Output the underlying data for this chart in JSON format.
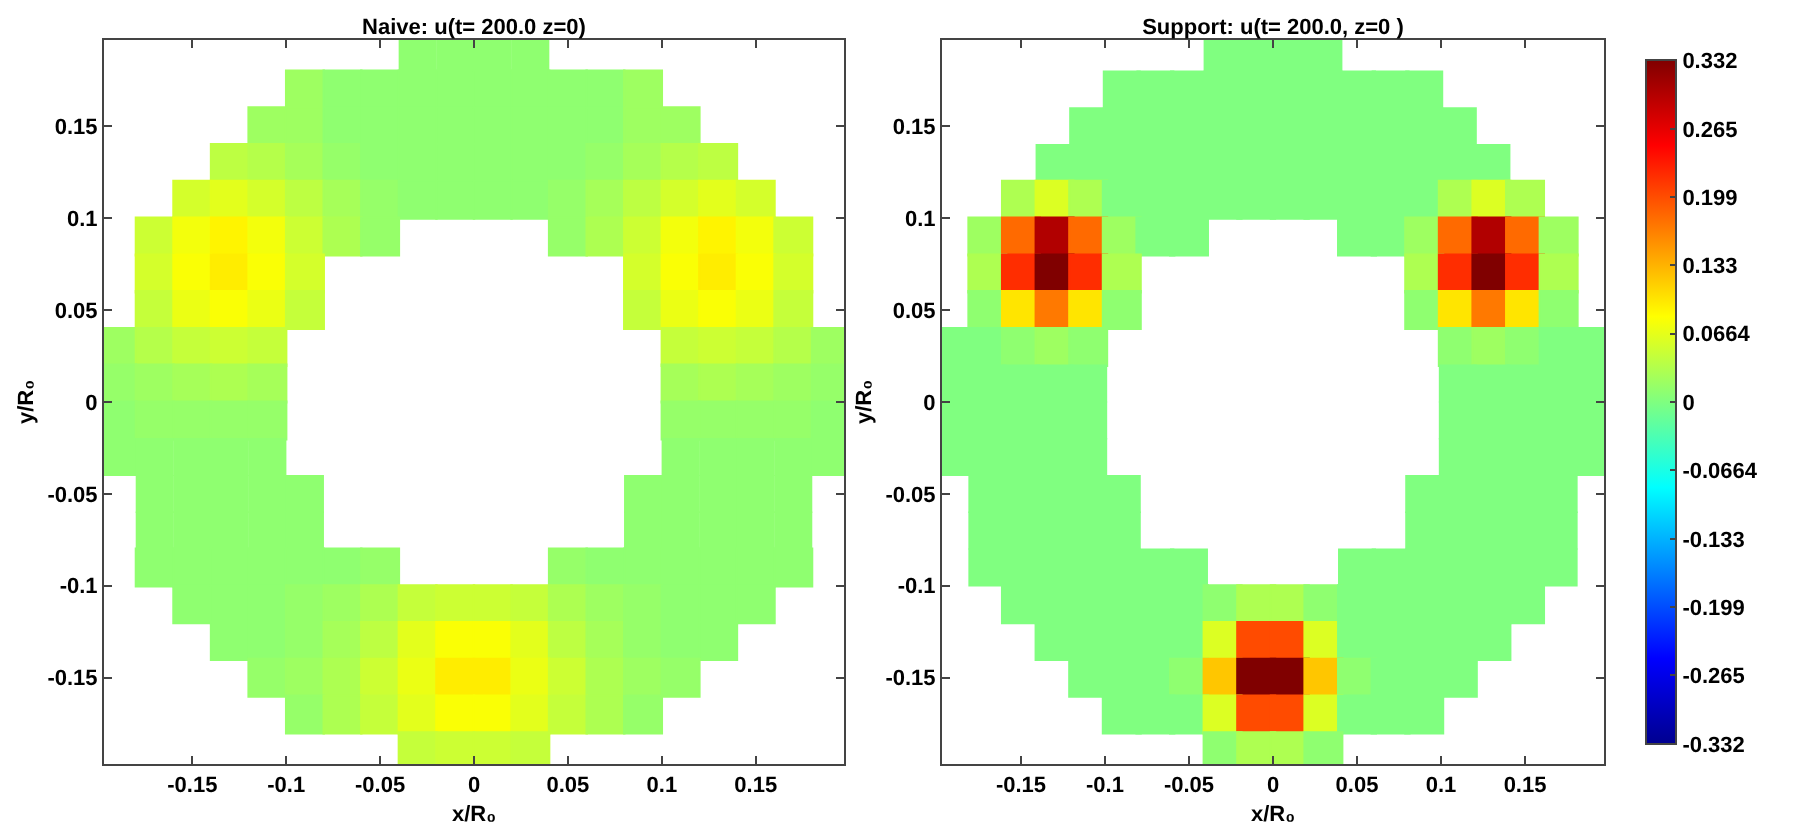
{
  "chart_data": [
    {
      "type": "scatter",
      "title": "Naive: u(t= 200.0 z=0)",
      "xlabel": "x/R₀",
      "ylabel": "y/R₀",
      "marker": "square",
      "xlim": [
        -0.197,
        0.197
      ],
      "ylim": [
        -0.197,
        0.197
      ],
      "xticks": [
        -0.15,
        -0.1,
        -0.05,
        0,
        0.05,
        0.1,
        0.15
      ],
      "yticks": [
        -0.15,
        -0.1,
        -0.05,
        0,
        0.05,
        0.1,
        0.15
      ],
      "grid": false,
      "series": [
        {
          "x": [
            -0.03,
            -0.01,
            0.01,
            0.03
          ],
          "values": [
            0.19,
            0.19,
            0.19,
            0.19
          ],
          "color": "#8fff70"
        },
        {
          "x": [
            -0.09,
            -0.07,
            -0.05,
            -0.03,
            -0.01,
            0.01,
            0.03,
            0.05,
            0.07,
            0.09
          ],
          "values": [
            0.17,
            0.17,
            0.17,
            0.17,
            0.17,
            0.17,
            0.17,
            0.17,
            0.17,
            0.17
          ],
          "colors": [
            "#9eff61",
            "#8fff70",
            "#8fff70",
            "#8fff70",
            "#8fff70",
            "#8fff70",
            "#8fff70",
            "#8fff70",
            "#8fff70",
            "#9eff61"
          ]
        },
        {
          "x": [
            -0.11,
            -0.09,
            -0.07,
            -0.05,
            -0.03,
            -0.01,
            0.01,
            0.03,
            0.05,
            0.07,
            0.09,
            0.11
          ],
          "values": [
            0.15,
            0.15,
            0.15,
            0.15,
            0.15,
            0.15,
            0.15,
            0.15,
            0.15,
            0.15,
            0.15,
            0.15
          ],
          "colors": [
            "#9eff61",
            "#9eff61",
            "#8fff70",
            "#8fff70",
            "#8fff70",
            "#8fff70",
            "#8fff70",
            "#8fff70",
            "#8fff70",
            "#8fff70",
            "#9eff61",
            "#9eff61"
          ]
        },
        {
          "x": [
            -0.13,
            -0.11,
            -0.09,
            -0.07,
            -0.05,
            -0.03,
            -0.01,
            0.01,
            0.03,
            0.05,
            0.07,
            0.09,
            0.11,
            0.13
          ],
          "values": [
            0.13,
            0.13,
            0.13,
            0.13,
            0.13,
            0.13,
            0.13,
            0.13,
            0.13,
            0.13,
            0.13,
            0.13,
            0.13,
            0.13
          ],
          "colors": [
            "#bdff42",
            "#b5ff4a",
            "#a6ff59",
            "#96ff69",
            "#8fff70",
            "#8fff70",
            "#8fff70",
            "#8fff70",
            "#8fff70",
            "#8fff70",
            "#96ff69",
            "#a6ff59",
            "#b5ff4a",
            "#bdff42"
          ]
        },
        {
          "x": [
            -0.15,
            -0.13,
            -0.11,
            -0.09,
            -0.07,
            -0.05,
            -0.03,
            -0.01,
            0.01,
            0.03,
            0.05,
            0.07,
            0.09,
            0.11,
            0.13,
            0.15
          ],
          "values": [
            0.11,
            0.11,
            0.11,
            0.11,
            0.11,
            0.11,
            0.11,
            0.11,
            0.11,
            0.11,
            0.11,
            0.11,
            0.11,
            0.11,
            0.11,
            0.11
          ],
          "colors": [
            "#d4ff2b",
            "#e3ff1c",
            "#d4ff2b",
            "#bdff42",
            "#a6ff59",
            "#96ff69",
            "#8fff70",
            "#8fff70",
            "#8fff70",
            "#8fff70",
            "#96ff69",
            "#a6ff59",
            "#bdff42",
            "#d4ff2b",
            "#e3ff1c",
            "#d4ff2b"
          ]
        },
        {
          "x": [
            -0.17,
            -0.15,
            -0.13,
            -0.11,
            -0.09,
            -0.07,
            -0.05,
            0.05,
            0.07,
            0.09,
            0.11,
            0.13,
            0.15,
            0.17
          ],
          "values": [
            0.09,
            0.09,
            0.09,
            0.09,
            0.09,
            0.09,
            0.09,
            0.09,
            0.09,
            0.09,
            0.09,
            0.09,
            0.09,
            0.09
          ],
          "colors": [
            "#ccff33",
            "#f3ff0c",
            "#fff400",
            "#f3ff0c",
            "#ccff33",
            "#adff51",
            "#96ff69",
            "#96ff69",
            "#adff51",
            "#ccff33",
            "#f3ff0c",
            "#fff400",
            "#f3ff0c",
            "#ccff33"
          ]
        },
        {
          "x": [
            -0.17,
            -0.15,
            -0.13,
            -0.11,
            -0.09,
            0.09,
            0.11,
            0.13,
            0.15,
            0.17
          ],
          "values": [
            0.07,
            0.07,
            0.07,
            0.07,
            0.07,
            0.07,
            0.07,
            0.07,
            0.07,
            0.07
          ],
          "colors": [
            "#d4ff2b",
            "#faff05",
            "#ffed00",
            "#faff05",
            "#d4ff2b",
            "#d4ff2b",
            "#faff05",
            "#ffed00",
            "#faff05",
            "#d4ff2b"
          ]
        },
        {
          "x": [
            -0.17,
            -0.15,
            -0.13,
            -0.11,
            -0.09,
            0.09,
            0.11,
            0.13,
            0.15,
            0.17
          ],
          "values": [
            0.05,
            0.05,
            0.05,
            0.05,
            0.05,
            0.05,
            0.05,
            0.05,
            0.05,
            0.05
          ],
          "colors": [
            "#c5ff3a",
            "#ebff14",
            "#faff05",
            "#ebff14",
            "#c5ff3a",
            "#c5ff3a",
            "#ebff14",
            "#faff05",
            "#ebff14",
            "#c5ff3a"
          ]
        },
        {
          "x": [
            -0.19,
            -0.17,
            -0.15,
            -0.13,
            -0.11,
            0.11,
            0.13,
            0.15,
            0.17,
            0.19
          ],
          "values": [
            0.03,
            0.03,
            0.03,
            0.03,
            0.03,
            0.03,
            0.03,
            0.03,
            0.03,
            0.03
          ],
          "colors": [
            "#9eff61",
            "#b5ff4a",
            "#c5ff3a",
            "#ccff33",
            "#c5ff3a",
            "#c5ff3a",
            "#ccff33",
            "#c5ff3a",
            "#b5ff4a",
            "#9eff61"
          ]
        },
        {
          "x": [
            -0.19,
            -0.17,
            -0.15,
            -0.13,
            -0.11,
            0.11,
            0.13,
            0.15,
            0.17,
            0.19
          ],
          "values": [
            0.01,
            0.01,
            0.01,
            0.01,
            0.01,
            0.01,
            0.01,
            0.01,
            0.01,
            0.01
          ],
          "colors": [
            "#96ff69",
            "#9eff61",
            "#a6ff59",
            "#adff51",
            "#a6ff59",
            "#a6ff59",
            "#adff51",
            "#a6ff59",
            "#9eff61",
            "#96ff69"
          ]
        },
        {
          "x": [
            -0.19,
            -0.17,
            -0.15,
            -0.13,
            -0.11,
            0.11,
            0.13,
            0.15,
            0.17,
            0.19
          ],
          "values": [
            -0.01,
            -0.01,
            -0.01,
            -0.01,
            -0.01,
            -0.01,
            -0.01,
            -0.01,
            -0.01,
            -0.01
          ],
          "colors": [
            "#8fff70",
            "#96ff69",
            "#96ff69",
            "#96ff69",
            "#96ff69",
            "#96ff69",
            "#96ff69",
            "#96ff69",
            "#96ff69",
            "#8fff70"
          ]
        },
        {
          "x": [
            -0.19,
            -0.17,
            -0.15,
            -0.13,
            -0.11,
            0.11,
            0.13,
            0.15,
            0.17,
            0.19
          ],
          "values": [
            -0.03,
            -0.03,
            -0.03,
            -0.03,
            -0.03,
            -0.03,
            -0.03,
            -0.03,
            -0.03,
            -0.03
          ],
          "color": "#8fff70"
        },
        {
          "x": [
            -0.17,
            -0.15,
            -0.13,
            -0.11,
            -0.09,
            0.09,
            0.11,
            0.13,
            0.15,
            0.17
          ],
          "values": [
            -0.05,
            -0.05,
            -0.05,
            -0.05,
            -0.05,
            -0.05,
            -0.05,
            -0.05,
            -0.05,
            -0.05
          ],
          "color": "#8fff70"
        },
        {
          "x": [
            -0.17,
            -0.15,
            -0.13,
            -0.11,
            -0.09,
            0.09,
            0.11,
            0.13,
            0.15,
            0.17
          ],
          "values": [
            -0.07,
            -0.07,
            -0.07,
            -0.07,
            -0.07,
            -0.07,
            -0.07,
            -0.07,
            -0.07,
            -0.07
          ],
          "color": "#8fff70"
        },
        {
          "x": [
            -0.17,
            -0.15,
            -0.13,
            -0.11,
            -0.09,
            -0.07,
            -0.05,
            0.05,
            0.07,
            0.09,
            0.11,
            0.13,
            0.15,
            0.17
          ],
          "values": [
            -0.09,
            -0.09,
            -0.09,
            -0.09,
            -0.09,
            -0.09,
            -0.09,
            -0.09,
            -0.09,
            -0.09,
            -0.09,
            -0.09,
            -0.09,
            -0.09
          ],
          "colors": [
            "#8fff70",
            "#8fff70",
            "#8fff70",
            "#8fff70",
            "#8fff70",
            "#8fff70",
            "#96ff69",
            "#96ff69",
            "#8fff70",
            "#8fff70",
            "#8fff70",
            "#8fff70",
            "#8fff70",
            "#8fff70"
          ]
        },
        {
          "x": [
            -0.15,
            -0.13,
            -0.11,
            -0.09,
            -0.07,
            -0.05,
            -0.03,
            -0.01,
            0.01,
            0.03,
            0.05,
            0.07,
            0.09,
            0.11,
            0.13,
            0.15
          ],
          "values": [
            -0.11,
            -0.11,
            -0.11,
            -0.11,
            -0.11,
            -0.11,
            -0.11,
            -0.11,
            -0.11,
            -0.11,
            -0.11,
            -0.11,
            -0.11,
            -0.11,
            -0.11,
            -0.11
          ],
          "colors": [
            "#8fff70",
            "#8fff70",
            "#8fff70",
            "#96ff69",
            "#9eff61",
            "#adff51",
            "#c5ff3a",
            "#ccff33",
            "#ccff33",
            "#c5ff3a",
            "#adff51",
            "#9eff61",
            "#96ff69",
            "#8fff70",
            "#8fff70",
            "#8fff70"
          ]
        },
        {
          "x": [
            -0.13,
            -0.11,
            -0.09,
            -0.07,
            -0.05,
            -0.03,
            -0.01,
            0.01,
            0.03,
            0.05,
            0.07,
            0.09,
            0.11,
            0.13
          ],
          "values": [
            -0.13,
            -0.13,
            -0.13,
            -0.13,
            -0.13,
            -0.13,
            -0.13,
            -0.13,
            -0.13,
            -0.13,
            -0.13,
            -0.13,
            -0.13,
            -0.13
          ],
          "colors": [
            "#8fff70",
            "#8fff70",
            "#96ff69",
            "#a6ff59",
            "#bdff42",
            "#e3ff1c",
            "#faff05",
            "#faff05",
            "#e3ff1c",
            "#bdff42",
            "#a6ff59",
            "#96ff69",
            "#8fff70",
            "#8fff70"
          ]
        },
        {
          "x": [
            -0.11,
            -0.09,
            -0.07,
            -0.05,
            -0.03,
            -0.01,
            0.01,
            0.03,
            0.05,
            0.07,
            0.09,
            0.11
          ],
          "values": [
            -0.15,
            -0.15,
            -0.15,
            -0.15,
            -0.15,
            -0.15,
            -0.15,
            -0.15,
            -0.15,
            -0.15,
            -0.15,
            -0.15
          ],
          "colors": [
            "#96ff69",
            "#9eff61",
            "#adff51",
            "#ccff33",
            "#ebff14",
            "#ffed00",
            "#ffed00",
            "#ebff14",
            "#ccff33",
            "#adff51",
            "#9eff61",
            "#96ff69"
          ]
        },
        {
          "x": [
            -0.09,
            -0.07,
            -0.05,
            -0.03,
            -0.01,
            0.01,
            0.03,
            0.05,
            0.07,
            0.09
          ],
          "values": [
            -0.17,
            -0.17,
            -0.17,
            -0.17,
            -0.17,
            -0.17,
            -0.17,
            -0.17,
            -0.17,
            -0.17
          ],
          "colors": [
            "#96ff69",
            "#adff51",
            "#c5ff3a",
            "#e3ff1c",
            "#faff05",
            "#faff05",
            "#e3ff1c",
            "#c5ff3a",
            "#adff51",
            "#96ff69"
          ]
        },
        {
          "x": [
            -0.03,
            -0.01,
            0.01,
            0.03
          ],
          "values": [
            -0.19,
            -0.19,
            -0.19,
            -0.19
          ],
          "colors": [
            "#c5ff3a",
            "#ccff33",
            "#ccff33",
            "#c5ff3a"
          ]
        }
      ]
    },
    {
      "type": "scatter",
      "title": "Support: u(t= 200.0, z=0 )",
      "xlabel": "x/R₀",
      "ylabel": "y/R₀",
      "marker": "square",
      "xlim": [
        -0.197,
        0.197
      ],
      "ylim": [
        -0.197,
        0.197
      ],
      "xticks": [
        -0.15,
        -0.1,
        -0.05,
        0,
        0.05,
        0.1,
        0.15
      ],
      "yticks": [
        -0.15,
        -0.1,
        -0.05,
        0,
        0.05,
        0.1,
        0.15
      ],
      "clim": [
        -0.332,
        0.332
      ],
      "cticks": [
        -0.332,
        -0.265,
        -0.199,
        -0.133,
        -0.0664,
        0,
        0.0664,
        0.133,
        0.199,
        0.265,
        0.332
      ],
      "grid": false,
      "series": [
        {
          "x": [
            -0.03,
            -0.01,
            0.01,
            0.03
          ],
          "values": [
            0.19,
            0.19,
            0.19,
            0.19
          ],
          "cvalues": [
            0,
            0,
            0,
            0
          ]
        },
        {
          "x": [
            -0.09,
            -0.07,
            -0.05,
            -0.03,
            -0.01,
            0.01,
            0.03,
            0.05,
            0.07,
            0.09
          ],
          "values": [
            0.17,
            0.17,
            0.17,
            0.17,
            0.17,
            0.17,
            0.17,
            0.17,
            0.17,
            0.17
          ],
          "cvalues": [
            0,
            0,
            0,
            0,
            0,
            0,
            0,
            0,
            0,
            0
          ]
        },
        {
          "x": [
            -0.11,
            -0.09,
            -0.07,
            -0.05,
            -0.03,
            -0.01,
            0.01,
            0.03,
            0.05,
            0.07,
            0.09,
            0.11
          ],
          "values": [
            0.15,
            0.15,
            0.15,
            0.15,
            0.15,
            0.15,
            0.15,
            0.15,
            0.15,
            0.15,
            0.15,
            0.15
          ],
          "cvalues": [
            0,
            0,
            0,
            0,
            0,
            0,
            0,
            0,
            0,
            0,
            0,
            0
          ]
        },
        {
          "x": [
            -0.13,
            -0.11,
            -0.09,
            -0.07,
            -0.05,
            -0.03,
            -0.01,
            0.01,
            0.03,
            0.05,
            0.07,
            0.09,
            0.11,
            0.13
          ],
          "values": [
            0.13,
            0.13,
            0.13,
            0.13,
            0.13,
            0.13,
            0.13,
            0.13,
            0.13,
            0.13,
            0.13,
            0.13,
            0.13,
            0.13
          ],
          "cvalues": [
            0,
            0,
            0,
            0,
            0,
            0,
            0,
            0,
            0,
            0,
            0,
            0,
            0,
            0
          ]
        },
        {
          "x": [
            -0.15,
            -0.13,
            -0.11,
            -0.09,
            -0.07,
            -0.05,
            -0.03,
            -0.01,
            0.01,
            0.03,
            0.05,
            0.07,
            0.09,
            0.11,
            0.13,
            0.15
          ],
          "values": [
            0.11,
            0.11,
            0.11,
            0.11,
            0.11,
            0.11,
            0.11,
            0.11,
            0.11,
            0.11,
            0.11,
            0.11,
            0.11,
            0.11,
            0.11,
            0.11
          ],
          "cvalues": [
            0.03,
            0.06,
            0.03,
            0,
            0,
            0,
            0,
            0,
            0,
            0,
            0,
            0,
            0,
            0.03,
            0.06,
            0.03
          ],
          "colors": [
            "#adff51",
            "#dcff23",
            "#adff51",
            "#80ff80",
            "#80ff80",
            "#80ff80",
            "#80ff80",
            "#80ff80",
            "#80ff80",
            "#80ff80",
            "#80ff80",
            "#80ff80",
            "#80ff80",
            "#adff51",
            "#dcff23",
            "#adff51"
          ]
        },
        {
          "x": [
            -0.17,
            -0.15,
            -0.13,
            -0.11,
            -0.09,
            -0.07,
            -0.05,
            0.05,
            0.07,
            0.09,
            0.11,
            0.13,
            0.15,
            0.17
          ],
          "values": [
            0.09,
            0.09,
            0.09,
            0.09,
            0.09,
            0.09,
            0.09,
            0.09,
            0.09,
            0.09,
            0.09,
            0.09,
            0.09,
            0.09
          ],
          "cvalues": [
            0.02,
            0.18,
            0.3,
            0.18,
            0.02,
            0,
            0,
            0,
            0,
            0.02,
            0.18,
            0.3,
            0.18,
            0.02
          ],
          "colors": [
            "#9eff61",
            "#ff6a00",
            "#b10000",
            "#ff6a00",
            "#9eff61",
            "#80ff80",
            "#80ff80",
            "#80ff80",
            "#80ff80",
            "#9eff61",
            "#ff6a00",
            "#b10000",
            "#ff6a00",
            "#9eff61"
          ]
        },
        {
          "x": [
            -0.17,
            -0.15,
            -0.13,
            -0.11,
            -0.09,
            0.09,
            0.11,
            0.13,
            0.15,
            0.17
          ],
          "values": [
            0.07,
            0.07,
            0.07,
            0.07,
            0.07,
            0.07,
            0.07,
            0.07,
            0.07,
            0.07
          ],
          "cvalues": [
            0.03,
            0.22,
            0.332,
            0.22,
            0.03,
            0.03,
            0.22,
            0.332,
            0.22,
            0.03
          ],
          "colors": [
            "#adff51",
            "#ff2d00",
            "#800000",
            "#ff2d00",
            "#adff51",
            "#adff51",
            "#ff2d00",
            "#800000",
            "#ff2d00",
            "#adff51"
          ]
        },
        {
          "x": [
            -0.17,
            -0.15,
            -0.13,
            -0.11,
            -0.09,
            0.09,
            0.11,
            0.13,
            0.15,
            0.17
          ],
          "values": [
            0.05,
            0.05,
            0.05,
            0.05,
            0.05,
            0.05,
            0.05,
            0.05,
            0.05,
            0.05
          ],
          "cvalues": [
            0.01,
            0.1,
            0.17,
            0.1,
            0.01,
            0.01,
            0.1,
            0.17,
            0.1,
            0.01
          ],
          "colors": [
            "#8fff70",
            "#ffe500",
            "#ff7900",
            "#ffe500",
            "#8fff70",
            "#8fff70",
            "#ffe500",
            "#ff7900",
            "#ffe500",
            "#8fff70"
          ]
        },
        {
          "x": [
            -0.19,
            -0.17,
            -0.15,
            -0.13,
            -0.11,
            0.11,
            0.13,
            0.15,
            0.17,
            0.19
          ],
          "values": [
            0.03,
            0.03,
            0.03,
            0.03,
            0.03,
            0.03,
            0.03,
            0.03,
            0.03,
            0.03
          ],
          "cvalues": [
            0,
            0,
            0.01,
            0.02,
            0.01,
            0.01,
            0.02,
            0.01,
            0,
            0
          ],
          "colors": [
            "#80ff80",
            "#80ff80",
            "#8fff70",
            "#9eff61",
            "#8fff70",
            "#8fff70",
            "#9eff61",
            "#8fff70",
            "#80ff80",
            "#80ff80"
          ]
        },
        {
          "x": [
            -0.19,
            -0.17,
            -0.15,
            -0.13,
            -0.11,
            0.11,
            0.13,
            0.15,
            0.17,
            0.19
          ],
          "values": [
            0.01,
            0.01,
            0.01,
            0.01,
            0.01,
            0.01,
            0.01,
            0.01,
            0.01,
            0.01
          ],
          "cvalues": [
            0,
            0,
            0,
            0,
            0,
            0,
            0,
            0,
            0,
            0
          ]
        },
        {
          "x": [
            -0.19,
            -0.17,
            -0.15,
            -0.13,
            -0.11,
            0.11,
            0.13,
            0.15,
            0.17,
            0.19
          ],
          "values": [
            -0.01,
            -0.01,
            -0.01,
            -0.01,
            -0.01,
            -0.01,
            -0.01,
            -0.01,
            -0.01,
            -0.01
          ],
          "cvalues": [
            0,
            0,
            0,
            0,
            0,
            0,
            0,
            0,
            0,
            0
          ]
        },
        {
          "x": [
            -0.19,
            -0.17,
            -0.15,
            -0.13,
            -0.11,
            0.11,
            0.13,
            0.15,
            0.17,
            0.19
          ],
          "values": [
            -0.03,
            -0.03,
            -0.03,
            -0.03,
            -0.03,
            -0.03,
            -0.03,
            -0.03,
            -0.03,
            -0.03
          ],
          "cvalues": [
            0,
            0,
            0,
            0,
            0,
            0,
            0,
            0,
            0,
            0
          ]
        },
        {
          "x": [
            -0.17,
            -0.15,
            -0.13,
            -0.11,
            -0.09,
            0.09,
            0.11,
            0.13,
            0.15,
            0.17
          ],
          "values": [
            -0.05,
            -0.05,
            -0.05,
            -0.05,
            -0.05,
            -0.05,
            -0.05,
            -0.05,
            -0.05,
            -0.05
          ],
          "cvalues": [
            0,
            0,
            0,
            0,
            0,
            0,
            0,
            0,
            0,
            0
          ]
        },
        {
          "x": [
            -0.17,
            -0.15,
            -0.13,
            -0.11,
            -0.09,
            0.09,
            0.11,
            0.13,
            0.15,
            0.17
          ],
          "values": [
            -0.07,
            -0.07,
            -0.07,
            -0.07,
            -0.07,
            -0.07,
            -0.07,
            -0.07,
            -0.07,
            -0.07
          ],
          "cvalues": [
            0,
            0,
            0,
            0,
            0,
            0,
            0,
            0,
            0,
            0
          ]
        },
        {
          "x": [
            -0.17,
            -0.15,
            -0.13,
            -0.11,
            -0.09,
            -0.07,
            -0.05,
            0.05,
            0.07,
            0.09,
            0.11,
            0.13,
            0.15,
            0.17
          ],
          "values": [
            -0.09,
            -0.09,
            -0.09,
            -0.09,
            -0.09,
            -0.09,
            -0.09,
            -0.09,
            -0.09,
            -0.09,
            -0.09,
            -0.09,
            -0.09,
            -0.09
          ],
          "cvalues": [
            0,
            0,
            0,
            0,
            0,
            0,
            0,
            0,
            0,
            0,
            0,
            0,
            0,
            0
          ]
        },
        {
          "x": [
            -0.15,
            -0.13,
            -0.11,
            -0.09,
            -0.07,
            -0.05,
            -0.03,
            -0.01,
            0.01,
            0.03,
            0.05,
            0.07,
            0.09,
            0.11,
            0.13,
            0.15
          ],
          "values": [
            -0.11,
            -0.11,
            -0.11,
            -0.11,
            -0.11,
            -0.11,
            -0.11,
            -0.11,
            -0.11,
            -0.11,
            -0.11,
            -0.11,
            -0.11,
            -0.11,
            -0.11,
            -0.11
          ],
          "cvalues": [
            0,
            0,
            0,
            0,
            0,
            0,
            0.01,
            0.03,
            0.03,
            0.01,
            0,
            0,
            0,
            0,
            0,
            0
          ],
          "colors": [
            "#80ff80",
            "#80ff80",
            "#80ff80",
            "#80ff80",
            "#80ff80",
            "#80ff80",
            "#8fff70",
            "#adff51",
            "#adff51",
            "#8fff70",
            "#80ff80",
            "#80ff80",
            "#80ff80",
            "#80ff80",
            "#80ff80",
            "#80ff80"
          ]
        },
        {
          "x": [
            -0.13,
            -0.11,
            -0.09,
            -0.07,
            -0.05,
            -0.03,
            -0.01,
            0.01,
            0.03,
            0.05,
            0.07,
            0.09,
            0.11,
            0.13
          ],
          "values": [
            -0.13,
            -0.13,
            -0.13,
            -0.13,
            -0.13,
            -0.13,
            -0.13,
            -0.13,
            -0.13,
            -0.13,
            -0.13,
            -0.13,
            -0.13,
            -0.13
          ],
          "cvalues": [
            0,
            0,
            0,
            0,
            0,
            0.06,
            0.2,
            0.2,
            0.06,
            0,
            0,
            0,
            0,
            0
          ],
          "colors": [
            "#80ff80",
            "#80ff80",
            "#80ff80",
            "#80ff80",
            "#80ff80",
            "#dcff23",
            "#ff4b00",
            "#ff4b00",
            "#dcff23",
            "#80ff80",
            "#80ff80",
            "#80ff80",
            "#80ff80",
            "#80ff80"
          ]
        },
        {
          "x": [
            -0.11,
            -0.09,
            -0.07,
            -0.05,
            -0.03,
            -0.01,
            0.01,
            0.03,
            0.05,
            0.07,
            0.09,
            0.11
          ],
          "values": [
            -0.15,
            -0.15,
            -0.15,
            -0.15,
            -0.15,
            -0.15,
            -0.15,
            -0.15,
            -0.15,
            -0.15,
            -0.15,
            -0.15
          ],
          "cvalues": [
            0,
            0,
            0,
            0.01,
            0.12,
            0.332,
            0.332,
            0.12,
            0.01,
            0,
            0,
            0
          ],
          "colors": [
            "#80ff80",
            "#80ff80",
            "#80ff80",
            "#8fff70",
            "#ffc600",
            "#800000",
            "#800000",
            "#ffc600",
            "#8fff70",
            "#80ff80",
            "#80ff80",
            "#80ff80"
          ]
        },
        {
          "x": [
            -0.09,
            -0.07,
            -0.05,
            -0.03,
            -0.01,
            0.01,
            0.03,
            0.05,
            0.07,
            0.09
          ],
          "values": [
            -0.17,
            -0.17,
            -0.17,
            -0.17,
            -0.17,
            -0.17,
            -0.17,
            -0.17,
            -0.17,
            -0.17
          ],
          "cvalues": [
            0,
            0,
            0,
            0.06,
            0.2,
            0.2,
            0.06,
            0,
            0,
            0
          ],
          "colors": [
            "#80ff80",
            "#80ff80",
            "#80ff80",
            "#dcff23",
            "#ff4b00",
            "#ff4b00",
            "#dcff23",
            "#80ff80",
            "#80ff80",
            "#80ff80"
          ]
        },
        {
          "x": [
            -0.03,
            -0.01,
            0.01,
            0.03
          ],
          "values": [
            -0.19,
            -0.19,
            -0.19,
            -0.19
          ],
          "cvalues": [
            0.01,
            0.03,
            0.03,
            0.01
          ],
          "colors": [
            "#8fff70",
            "#adff51",
            "#adff51",
            "#8fff70"
          ]
        }
      ]
    }
  ]
}
